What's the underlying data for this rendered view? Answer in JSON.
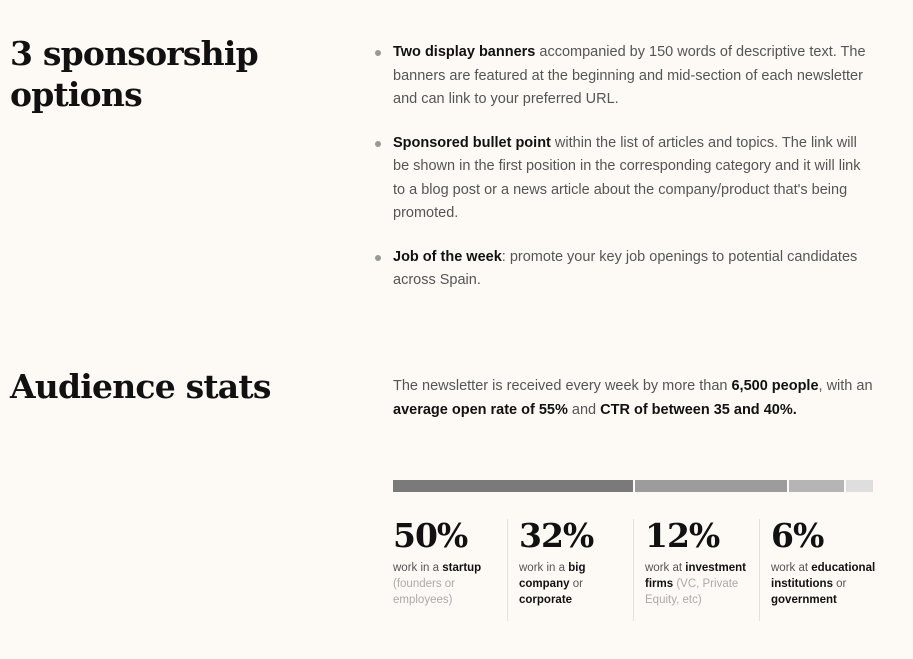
{
  "sponsorship": {
    "title_line1": "3 sponsorship",
    "title_line2": "options",
    "items": [
      {
        "bold": "Two display banners",
        "rest": " accompanied by 150 words of descriptive text. The banners are featured at the beginning and mid-section of each newsletter and can link to your preferred URL."
      },
      {
        "bold": "Sponsored bullet point",
        "rest": " within the list of articles and topics. The link will be shown in the first position in the corresponding category and it will link to a blog post or a news article about the company/product that's being promoted."
      },
      {
        "bold": "Job of the week",
        "rest": ": promote your key job openings to potential candidates across Spain."
      }
    ]
  },
  "audience": {
    "title": "Audience stats",
    "text1": "The newsletter is received every week by more than ",
    "bold1": "6,500 people",
    "text2": ", with an ",
    "bold2": "average open rate of 55%",
    "text3": " and ",
    "bold3": "CTR of between 35 and 40%."
  },
  "breakdown": {
    "colors": [
      "#7a7a7a",
      "#9c9c9c",
      "#b5b5b5",
      "#dedede"
    ],
    "stats": [
      {
        "pct": "50%",
        "share": 0.5,
        "pre": "work in a ",
        "bold": "startup",
        "mid": "",
        "bold2": "",
        "note": " (founders or employees)"
      },
      {
        "pct": "32%",
        "share": 0.32,
        "pre": "work in a ",
        "bold": "big company",
        "mid": " or ",
        "bold2": "corporate",
        "note": ""
      },
      {
        "pct": "12%",
        "share": 0.12,
        "pre": "work at ",
        "bold": "investment firms",
        "mid": "",
        "bold2": "",
        "note": " (VC, Private Equity, etc)"
      },
      {
        "pct": "6%",
        "share": 0.06,
        "pre": "work at ",
        "bold": "educational institutions",
        "mid": " or ",
        "bold2": "government",
        "note": ""
      }
    ]
  }
}
